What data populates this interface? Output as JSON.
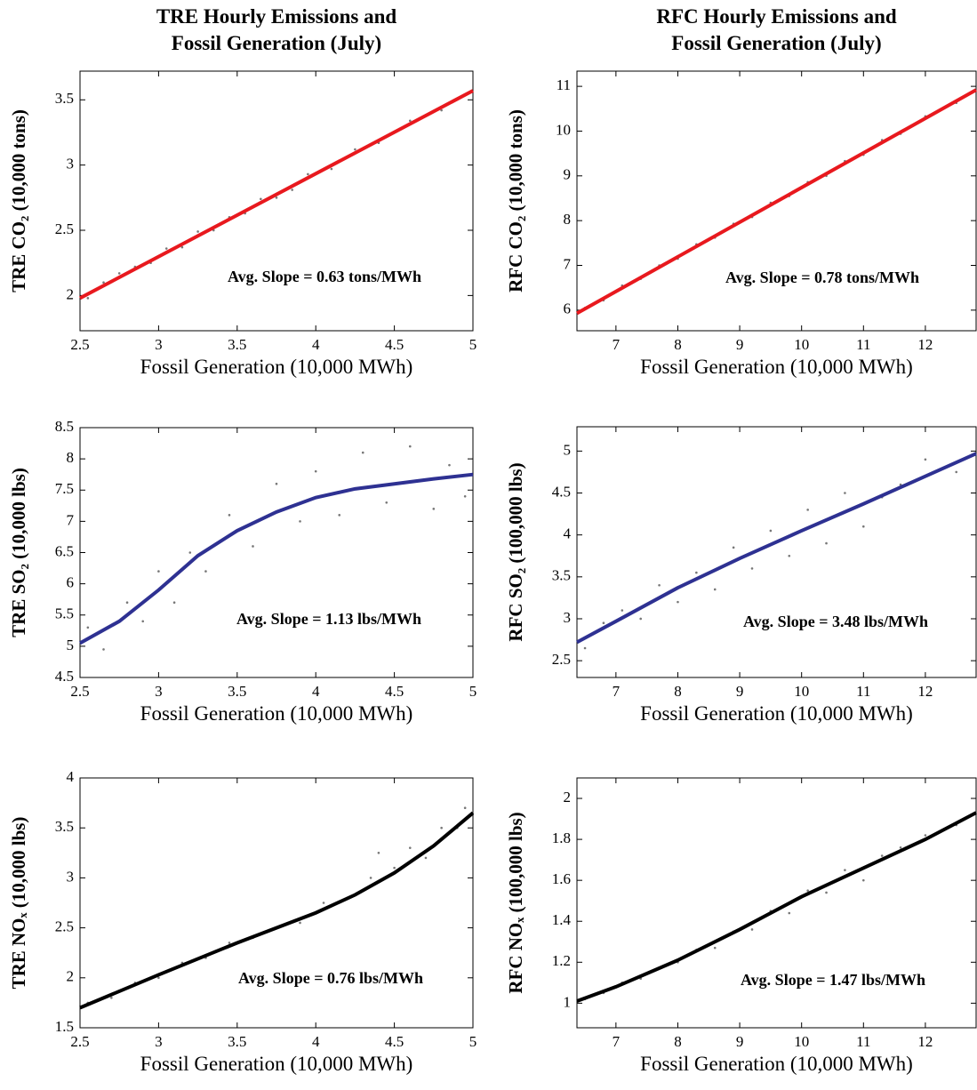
{
  "chart_data": [
    {
      "type": "scatter",
      "title": [
        "TRE Hourly Emissions and",
        "Fossil Generation (July)"
      ],
      "xlabel": "Fossil Generation (10,000 MWh)",
      "ylabel": "TRE CO₂ (10,000 tons)",
      "annotation": "Avg. Slope = 0.63 tons/MWh",
      "xlim": [
        2.5,
        5
      ],
      "xticks": [
        2.5,
        3,
        3.5,
        4,
        4.5,
        5
      ],
      "ylim": [
        1.73,
        3.72
      ],
      "yticks": [
        2,
        2.5,
        3,
        3.5
      ],
      "points": {
        "color": "#777777",
        "x": [
          2.55,
          2.65,
          2.75,
          2.85,
          2.95,
          3.05,
          3.15,
          3.25,
          3.35,
          3.45,
          3.55,
          3.65,
          3.75,
          3.85,
          3.95,
          4.1,
          4.25,
          4.4,
          4.6,
          4.8
        ],
        "y": [
          1.98,
          2.1,
          2.17,
          2.22,
          2.25,
          2.36,
          2.37,
          2.49,
          2.5,
          2.6,
          2.63,
          2.74,
          2.75,
          2.81,
          2.93,
          2.97,
          3.12,
          3.17,
          3.34,
          3.42
        ]
      },
      "fit": {
        "color": "#e8191e",
        "x": [
          2.5,
          5
        ],
        "y": [
          1.98,
          3.57
        ]
      }
    },
    {
      "type": "scatter",
      "title": [
        "RFC Hourly Emissions and",
        "Fossil Generation (July)"
      ],
      "xlabel": "Fossil Generation (10,000 MWh)",
      "ylabel": "RFC CO₂ (10,000 tons)",
      "annotation": "Avg. Slope = 0.78 tons/MWh",
      "xlim": [
        6.37,
        12.82
      ],
      "xticks": [
        7,
        8,
        9,
        10,
        11,
        12
      ],
      "ylim": [
        5.54,
        11.34
      ],
      "yticks": [
        6,
        7,
        8,
        9,
        10,
        11
      ],
      "points": {
        "color": "#777777",
        "x": [
          6.5,
          6.8,
          7.1,
          7.4,
          7.7,
          8.0,
          8.3,
          8.6,
          8.9,
          9.2,
          9.5,
          9.8,
          10.1,
          10.4,
          10.7,
          11.0,
          11.3,
          11.6,
          12.0,
          12.5
        ],
        "y": [
          6.05,
          6.22,
          6.55,
          6.7,
          7.0,
          7.15,
          7.47,
          7.62,
          7.93,
          8.08,
          8.4,
          8.55,
          8.86,
          9.0,
          9.33,
          9.47,
          9.8,
          9.94,
          10.33,
          10.63
        ]
      },
      "fit": {
        "color": "#e8191e",
        "x": [
          6.37,
          12.82
        ],
        "y": [
          5.93,
          10.92
        ]
      }
    },
    {
      "type": "scatter",
      "xlabel": "Fossil Generation (10,000 MWh)",
      "ylabel": "TRE SO₂ (10,000 lbs)",
      "annotation": "Avg. Slope = 1.13 lbs/MWh",
      "xlim": [
        2.5,
        5
      ],
      "xticks": [
        2.5,
        3,
        3.5,
        4,
        4.5,
        5
      ],
      "ylim": [
        4.5,
        8.5
      ],
      "yticks": [
        4.5,
        5,
        5.5,
        6,
        6.5,
        7,
        7.5,
        8,
        8.5
      ],
      "points": {
        "color": "#777777",
        "x": [
          2.55,
          2.65,
          2.8,
          2.9,
          3.0,
          3.1,
          3.2,
          3.3,
          3.45,
          3.6,
          3.75,
          3.9,
          4.0,
          4.15,
          4.3,
          4.45,
          4.6,
          4.75,
          4.85,
          4.95
        ],
        "y": [
          5.3,
          4.95,
          5.7,
          5.4,
          6.2,
          5.7,
          6.5,
          6.2,
          7.1,
          6.6,
          7.6,
          7.0,
          7.8,
          7.1,
          8.1,
          7.3,
          8.2,
          7.2,
          7.9,
          7.4
        ]
      },
      "fit": {
        "color": "#2e3192",
        "x": [
          2.5,
          2.75,
          3.0,
          3.25,
          3.5,
          3.75,
          4.0,
          4.25,
          4.5,
          4.75,
          5.0
        ],
        "y": [
          5.05,
          5.4,
          5.9,
          6.45,
          6.85,
          7.15,
          7.38,
          7.52,
          7.6,
          7.68,
          7.75
        ]
      }
    },
    {
      "type": "scatter",
      "xlabel": "Fossil Generation (10,000 MWh)",
      "ylabel": "RFC SO₂ (100,000 lbs)",
      "annotation": "Avg. Slope = 3.48 lbs/MWh",
      "xlim": [
        6.37,
        12.82
      ],
      "xticks": [
        7,
        8,
        9,
        10,
        11,
        12
      ],
      "ylim": [
        2.3,
        5.29
      ],
      "yticks": [
        2.5,
        3,
        3.5,
        4,
        4.5,
        5
      ],
      "points": {
        "color": "#777777",
        "x": [
          6.5,
          6.8,
          7.1,
          7.4,
          7.7,
          8.0,
          8.3,
          8.6,
          8.9,
          9.2,
          9.5,
          9.8,
          10.1,
          10.4,
          10.7,
          11.0,
          11.3,
          11.6,
          12.0,
          12.5
        ],
        "y": [
          2.65,
          2.95,
          3.1,
          3.0,
          3.4,
          3.2,
          3.55,
          3.35,
          3.85,
          3.6,
          4.05,
          3.75,
          4.3,
          3.9,
          4.5,
          4.1,
          4.45,
          4.6,
          4.9,
          4.75
        ]
      },
      "fit": {
        "color": "#2e3192",
        "x": [
          6.37,
          7,
          8,
          9,
          10,
          11,
          12,
          12.82
        ],
        "y": [
          2.72,
          2.97,
          3.37,
          3.72,
          4.05,
          4.37,
          4.7,
          4.97
        ]
      }
    },
    {
      "type": "scatter",
      "xlabel": "Fossil Generation (10,000 MWh)",
      "ylabel": "TRE NOₓ (10,000 lbs)",
      "annotation": "Avg. Slope = 0.76 lbs/MWh",
      "xlim": [
        2.5,
        5
      ],
      "xticks": [
        2.5,
        3,
        3.5,
        4,
        4.5,
        5
      ],
      "ylim": [
        1.5,
        4
      ],
      "yticks": [
        1.5,
        2,
        2.5,
        3,
        3.5,
        4
      ],
      "points": {
        "color": "#777777",
        "x": [
          2.55,
          2.7,
          2.85,
          3.0,
          3.15,
          3.3,
          3.45,
          3.6,
          3.75,
          3.9,
          4.05,
          4.2,
          4.35,
          4.5,
          4.6,
          4.7,
          4.8,
          4.9,
          4.95,
          4.4
        ],
        "y": [
          1.75,
          1.8,
          1.95,
          2.0,
          2.15,
          2.2,
          2.35,
          2.4,
          2.5,
          2.55,
          2.75,
          2.8,
          3.0,
          3.1,
          3.3,
          3.2,
          3.5,
          3.5,
          3.7,
          3.25
        ]
      },
      "fit": {
        "color": "#000000",
        "x": [
          2.5,
          3.0,
          3.5,
          4.0,
          4.25,
          4.5,
          4.75,
          5.0
        ],
        "y": [
          1.7,
          2.03,
          2.35,
          2.65,
          2.83,
          3.05,
          3.32,
          3.65
        ]
      }
    },
    {
      "type": "scatter",
      "xlabel": "Fossil Generation (10,000 MWh)",
      "ylabel": "RFC NOₓ (100,000 lbs)",
      "annotation": "Avg. Slope = 1.47 lbs/MWh",
      "xlim": [
        6.37,
        12.82
      ],
      "xticks": [
        7,
        8,
        9,
        10,
        11,
        12
      ],
      "ylim": [
        0.88,
        2.1
      ],
      "yticks": [
        1,
        1.2,
        1.4,
        1.6,
        1.8,
        2
      ],
      "points": {
        "color": "#777777",
        "x": [
          6.5,
          6.8,
          7.1,
          7.4,
          7.7,
          8.0,
          8.3,
          8.6,
          8.9,
          9.2,
          9.5,
          9.8,
          10.1,
          10.4,
          10.7,
          11.0,
          11.3,
          11.6,
          12.0,
          12.5
        ],
        "y": [
          1.02,
          1.05,
          1.1,
          1.12,
          1.17,
          1.2,
          1.26,
          1.27,
          1.35,
          1.36,
          1.45,
          1.44,
          1.55,
          1.54,
          1.65,
          1.6,
          1.72,
          1.76,
          1.82,
          1.87
        ]
      },
      "fit": {
        "color": "#000000",
        "x": [
          6.37,
          7,
          8,
          9,
          10,
          11,
          12,
          12.82
        ],
        "y": [
          1.01,
          1.08,
          1.21,
          1.36,
          1.52,
          1.66,
          1.8,
          1.93
        ]
      }
    }
  ]
}
